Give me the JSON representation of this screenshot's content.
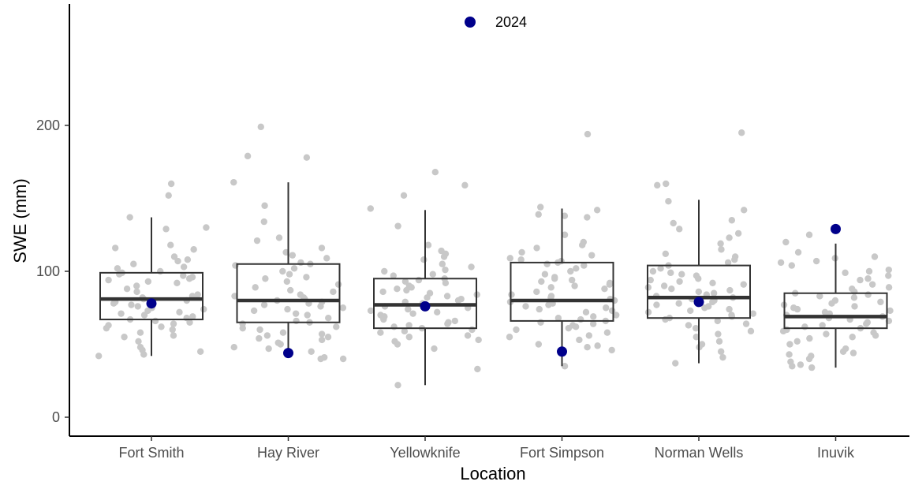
{
  "chart_data": {
    "type": "box",
    "xlabel": "Location",
    "ylabel": "SWE (mm)",
    "ylim": [
      -12,
      285
    ],
    "yticks": [
      0,
      100,
      200
    ],
    "categories": [
      "Fort Smith",
      "Hay River",
      "Yellowknife",
      "Fort Simpson",
      "Norman Wells",
      "Inuvik"
    ],
    "legend": {
      "label": "2024",
      "position": "top-center"
    },
    "colors": {
      "highlight": "#00008b",
      "points": "#c8c8c8",
      "box": "#333333"
    },
    "boxes": [
      {
        "category": "Fort Smith",
        "whisker_low": 42,
        "q1": 67,
        "median": 81,
        "q3": 99,
        "whisker_high": 137
      },
      {
        "category": "Hay River",
        "whisker_low": 45,
        "q1": 65,
        "median": 80,
        "q3": 105,
        "whisker_high": 161
      },
      {
        "category": "Yellowknife",
        "whisker_low": 22,
        "q1": 61,
        "median": 77,
        "q3": 95,
        "whisker_high": 142
      },
      {
        "category": "Fort Simpson",
        "whisker_low": 35,
        "q1": 66,
        "median": 80,
        "q3": 106,
        "whisker_high": 143
      },
      {
        "category": "Norman Wells",
        "whisker_low": 37,
        "q1": 68,
        "median": 82,
        "q3": 104,
        "whisker_high": 149
      },
      {
        "category": "Inuvik",
        "whisker_low": 34,
        "q1": 61,
        "median": 69,
        "q3": 85,
        "whisker_high": 119
      }
    ],
    "highlight_2024": [
      {
        "category": "Fort Smith",
        "value": 78
      },
      {
        "category": "Hay River",
        "value": 44
      },
      {
        "category": "Yellowknife",
        "value": 76
      },
      {
        "category": "Fort Simpson",
        "value": 45
      },
      {
        "category": "Norman Wells",
        "value": 79
      },
      {
        "category": "Inuvik",
        "value": 129
      }
    ],
    "points": {
      "Fort Smith": [
        152,
        137,
        129,
        130,
        160,
        118,
        116,
        115,
        110,
        108,
        107,
        105,
        103,
        102,
        100,
        99,
        98,
        97,
        96,
        95,
        94,
        93,
        92,
        90,
        88,
        86,
        84,
        83,
        82,
        81,
        80,
        79,
        78,
        77,
        76,
        75,
        74,
        73,
        72,
        71,
        70,
        69,
        68,
        67,
        66,
        65,
        64,
        63,
        62,
        61,
        60,
        58,
        56,
        55,
        52,
        48,
        46,
        45,
        43,
        42
      ],
      "Hay River": [
        199,
        179,
        178,
        161,
        145,
        134,
        123,
        121,
        116,
        113,
        111,
        109,
        106,
        105,
        104,
        102,
        100,
        98,
        96,
        95,
        93,
        91,
        89,
        87,
        86,
        84,
        83,
        82,
        81,
        80,
        79,
        78,
        77,
        76,
        75,
        74,
        73,
        71,
        70,
        68,
        66,
        65,
        64,
        62,
        61,
        60,
        58,
        57,
        56,
        55,
        54,
        53,
        51,
        50,
        48,
        47,
        45,
        41,
        40,
        40
      ],
      "Yellowknife": [
        168,
        159,
        152,
        143,
        131,
        118,
        114,
        112,
        110,
        108,
        105,
        103,
        101,
        100,
        98,
        97,
        95,
        94,
        93,
        92,
        90,
        89,
        88,
        87,
        86,
        85,
        84,
        83,
        82,
        81,
        80,
        79,
        78,
        77,
        76,
        75,
        74,
        73,
        72,
        71,
        70,
        69,
        68,
        67,
        66,
        65,
        64,
        63,
        62,
        61,
        60,
        59,
        58,
        56,
        55,
        53,
        52,
        50,
        47,
        33,
        22
      ],
      "Fort Simpson": [
        194,
        144,
        142,
        139,
        138,
        137,
        125,
        120,
        118,
        116,
        113,
        111,
        109,
        108,
        107,
        106,
        105,
        104,
        102,
        100,
        98,
        96,
        95,
        94,
        93,
        92,
        91,
        90,
        89,
        88,
        86,
        84,
        83,
        82,
        81,
        80,
        79,
        78,
        77,
        76,
        75,
        74,
        73,
        72,
        70,
        69,
        68,
        67,
        66,
        65,
        64,
        63,
        62,
        61,
        60,
        58,
        56,
        55,
        53,
        50,
        49,
        48,
        46,
        35
      ],
      "Norman Wells": [
        195,
        160,
        159,
        148,
        142,
        135,
        133,
        129,
        126,
        123,
        119,
        115,
        112,
        110,
        108,
        106,
        104,
        102,
        100,
        99,
        98,
        97,
        95,
        94,
        93,
        92,
        91,
        90,
        89,
        88,
        87,
        86,
        85,
        84,
        83,
        82,
        81,
        80,
        79,
        78,
        77,
        76,
        75,
        74,
        73,
        72,
        71,
        70,
        69,
        68,
        67,
        66,
        64,
        63,
        61,
        59,
        57,
        55,
        52,
        50,
        48,
        45,
        41,
        37
      ],
      "Inuvik": [
        125,
        120,
        113,
        110,
        109,
        107,
        106,
        104,
        101,
        100,
        99,
        97,
        95,
        94,
        91,
        89,
        88,
        86,
        85,
        84,
        83,
        82,
        80,
        79,
        78,
        77,
        76,
        75,
        74,
        73,
        72,
        71,
        70,
        69,
        68,
        67,
        66,
        65,
        64,
        63,
        62,
        61,
        60,
        59,
        58,
        57,
        56,
        55,
        54,
        52,
        50,
        47,
        45,
        44,
        43,
        42,
        40,
        38,
        36,
        35,
        34
      ]
    }
  }
}
